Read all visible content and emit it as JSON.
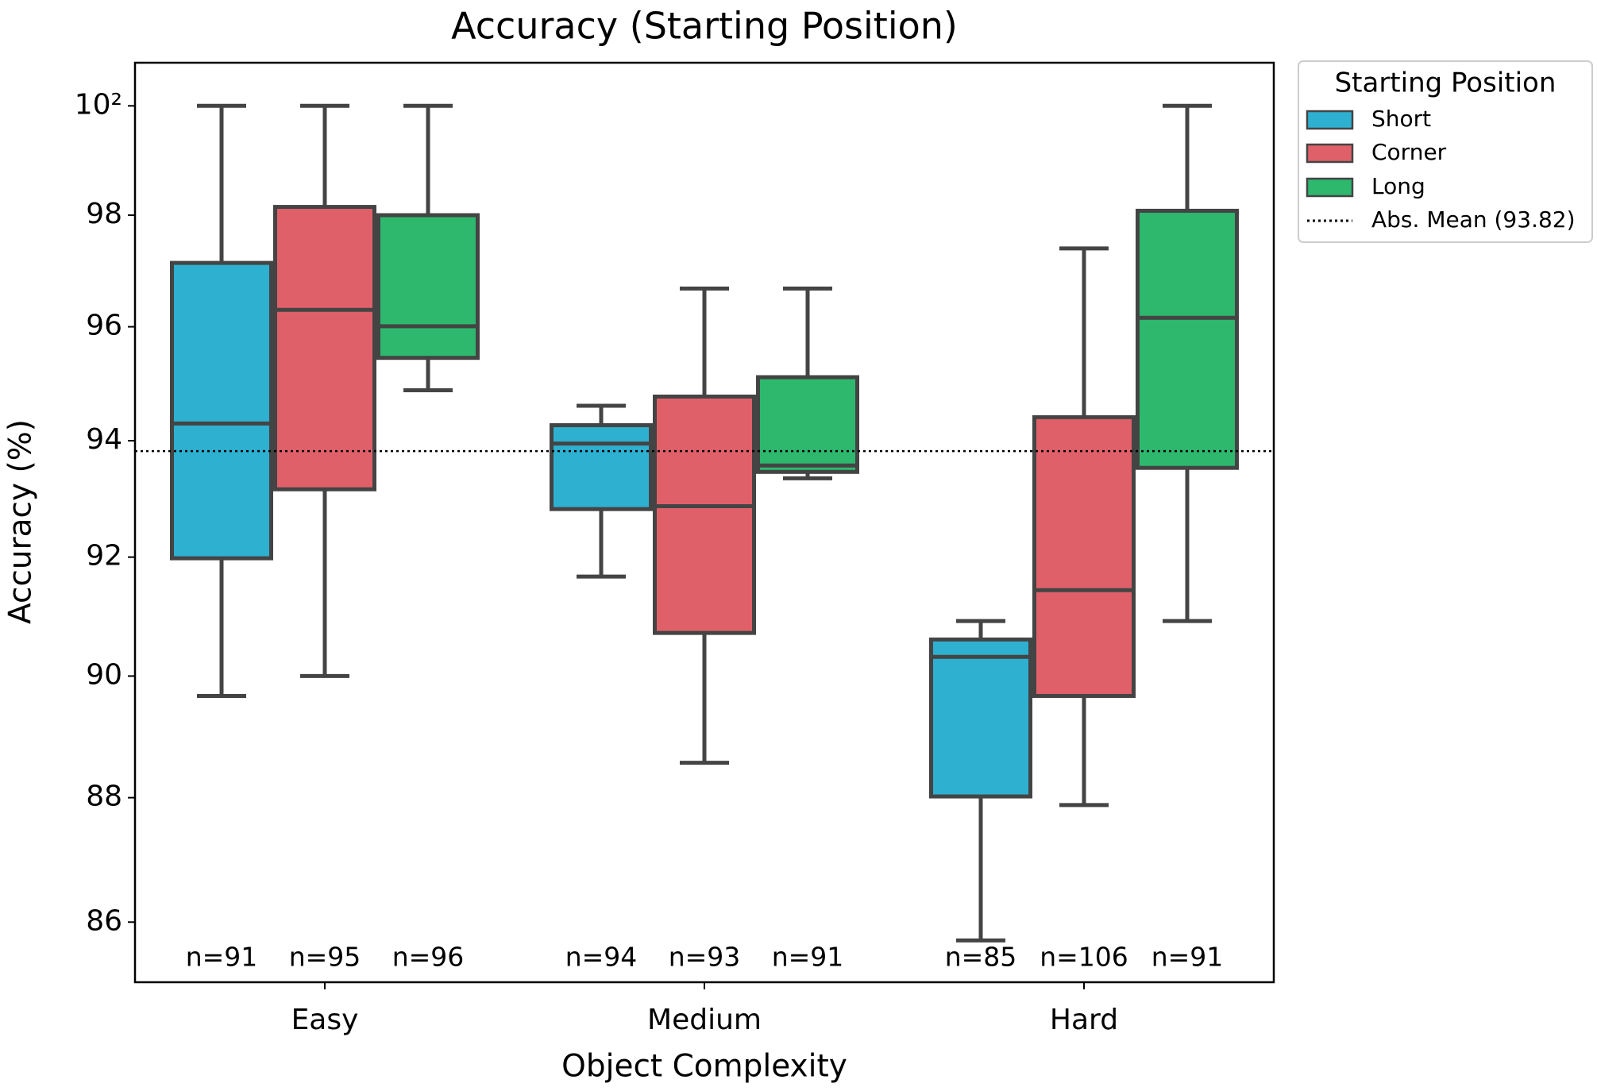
{
  "chart_data": {
    "type": "box",
    "title": "Accuracy (Starting Position)",
    "x_label": "Object Complexity",
    "y_label": "Accuracy (%)",
    "categories": [
      "Easy",
      "Medium",
      "Hard"
    ],
    "log_y": true,
    "ylim": [
      85.05,
      100.8
    ],
    "yticks": [
      86,
      88,
      90,
      92,
      94,
      96,
      98,
      {
        "value": 100,
        "label": "10²"
      }
    ],
    "legend_title": "Starting Position",
    "legend_position": "outside upper right",
    "edge_color": "#444444",
    "series": [
      {
        "name": "Short",
        "color": "#2eb0d1",
        "boxes": [
          {
            "whislo": 89.67,
            "q1": 91.98,
            "med": 94.3,
            "q3": 97.14,
            "whishi": 100
          },
          {
            "whislo": 91.67,
            "q1": 92.82,
            "med": 93.95,
            "q3": 94.27,
            "whishi": 94.61
          },
          {
            "whislo": 85.71,
            "q1": 88.02,
            "med": 90.32,
            "q3": 90.61,
            "whishi": 90.92
          }
        ],
        "n": [
          91,
          94,
          85
        ],
        "n_labels": [
          "n=91",
          "n=94",
          "n=85"
        ]
      },
      {
        "name": "Corner",
        "color": "#e0606a",
        "boxes": [
          {
            "whislo": 90.0,
            "q1": 93.16,
            "med": 96.3,
            "q3": 98.15,
            "whishi": 100
          },
          {
            "whislo": 88.57,
            "q1": 90.72,
            "med": 92.87,
            "q3": 94.77,
            "whishi": 96.68
          },
          {
            "whislo": 87.88,
            "q1": 89.67,
            "med": 91.44,
            "q3": 94.41,
            "whishi": 97.4
          }
        ],
        "n": [
          95,
          93,
          106
        ],
        "n_labels": [
          "n=95",
          "n=93",
          "n=106"
        ]
      },
      {
        "name": "Long",
        "color": "#2db86e",
        "boxes": [
          {
            "whislo": 94.88,
            "q1": 95.45,
            "med": 96.01,
            "q3": 98.0,
            "whishi": 100
          },
          {
            "whislo": 93.35,
            "q1": 93.46,
            "med": 93.57,
            "q3": 95.11,
            "whishi": 96.68
          },
          {
            "whislo": 90.92,
            "q1": 93.53,
            "med": 96.16,
            "q3": 98.08,
            "whishi": 100
          }
        ],
        "n": [
          96,
          91,
          91
        ],
        "n_labels": [
          "n=96",
          "n=91",
          "n=91"
        ]
      }
    ],
    "reference_line": {
      "name": "Abs. Mean (93.82)",
      "value": 93.82,
      "color": "#000000",
      "style": "dotted"
    }
  }
}
